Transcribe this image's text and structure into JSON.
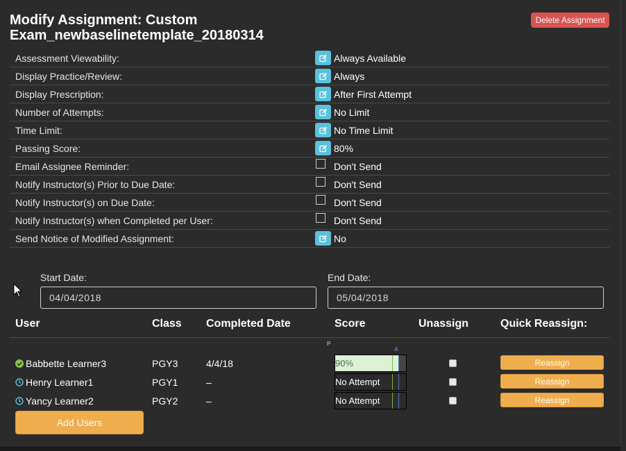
{
  "modal": {
    "title": "Modify Assignment: Custom Exam_newbaselinetemplate_20180314",
    "delete_label": "Delete Assignment"
  },
  "settings": [
    {
      "label": "Assessment Viewability:",
      "control": "edit",
      "value": "Always Available"
    },
    {
      "label": "Display Practice/Review:",
      "control": "edit",
      "value": "Always"
    },
    {
      "label": "Display Prescription:",
      "control": "edit",
      "value": "After First Attempt"
    },
    {
      "label": "Number of Attempts:",
      "control": "edit",
      "value": "No Limit"
    },
    {
      "label": "Time Limit:",
      "control": "edit",
      "value": "No Time Limit"
    },
    {
      "label": "Passing Score:",
      "control": "edit",
      "value": "80%"
    },
    {
      "label": "Email Assignee Reminder:",
      "control": "checkbox",
      "value": "Don't Send"
    },
    {
      "label": "Notify Instructor(s) Prior to Due Date:",
      "control": "checkbox",
      "value": "Don't Send"
    },
    {
      "label": "Notify Instructor(s) on Due Date:",
      "control": "checkbox",
      "value": "Don't Send"
    },
    {
      "label": "Notify Instructor(s) when Completed per User:",
      "control": "checkbox",
      "value": "Don't Send"
    },
    {
      "label": "Send Notice of Modified Assignment:",
      "control": "edit",
      "value": "No"
    }
  ],
  "dates": {
    "start_label": "Start Date:",
    "start_value": "04/04/2018",
    "end_label": "End Date:",
    "end_value": "05/04/2018"
  },
  "table": {
    "headers": {
      "user": "User",
      "class": "Class",
      "completed": "Completed Date",
      "score": "Score",
      "unassign": "Unassign",
      "quick": "Quick Reassign:"
    },
    "markers": {
      "passing": "P",
      "average": "A"
    },
    "rows": [
      {
        "status": "check-circle-icon",
        "user": "Babbette Learner3",
        "class": "PGY3",
        "completed": "4/4/18",
        "score_text": "90%",
        "score_fraction": 0.9,
        "reassign": "Reassign"
      },
      {
        "status": "clock-icon",
        "user": "Henry Learner1",
        "class": "PGY1",
        "completed": "–",
        "score_text": "No Attempt",
        "score_fraction": 0,
        "reassign": "Reassign"
      },
      {
        "status": "clock-icon",
        "user": "Yancy Learner2",
        "class": "PGY2",
        "completed": "–",
        "score_text": "No Attempt",
        "score_fraction": 0,
        "reassign": "Reassign"
      }
    ]
  },
  "add_users_label": "Add Users",
  "colors": {
    "danger": "#d9534f",
    "info": "#5bc0de",
    "warning": "#f0ad4e",
    "success": "#8bc34a",
    "clock": "#5bc0de",
    "score_fill": "#dff0d8"
  }
}
